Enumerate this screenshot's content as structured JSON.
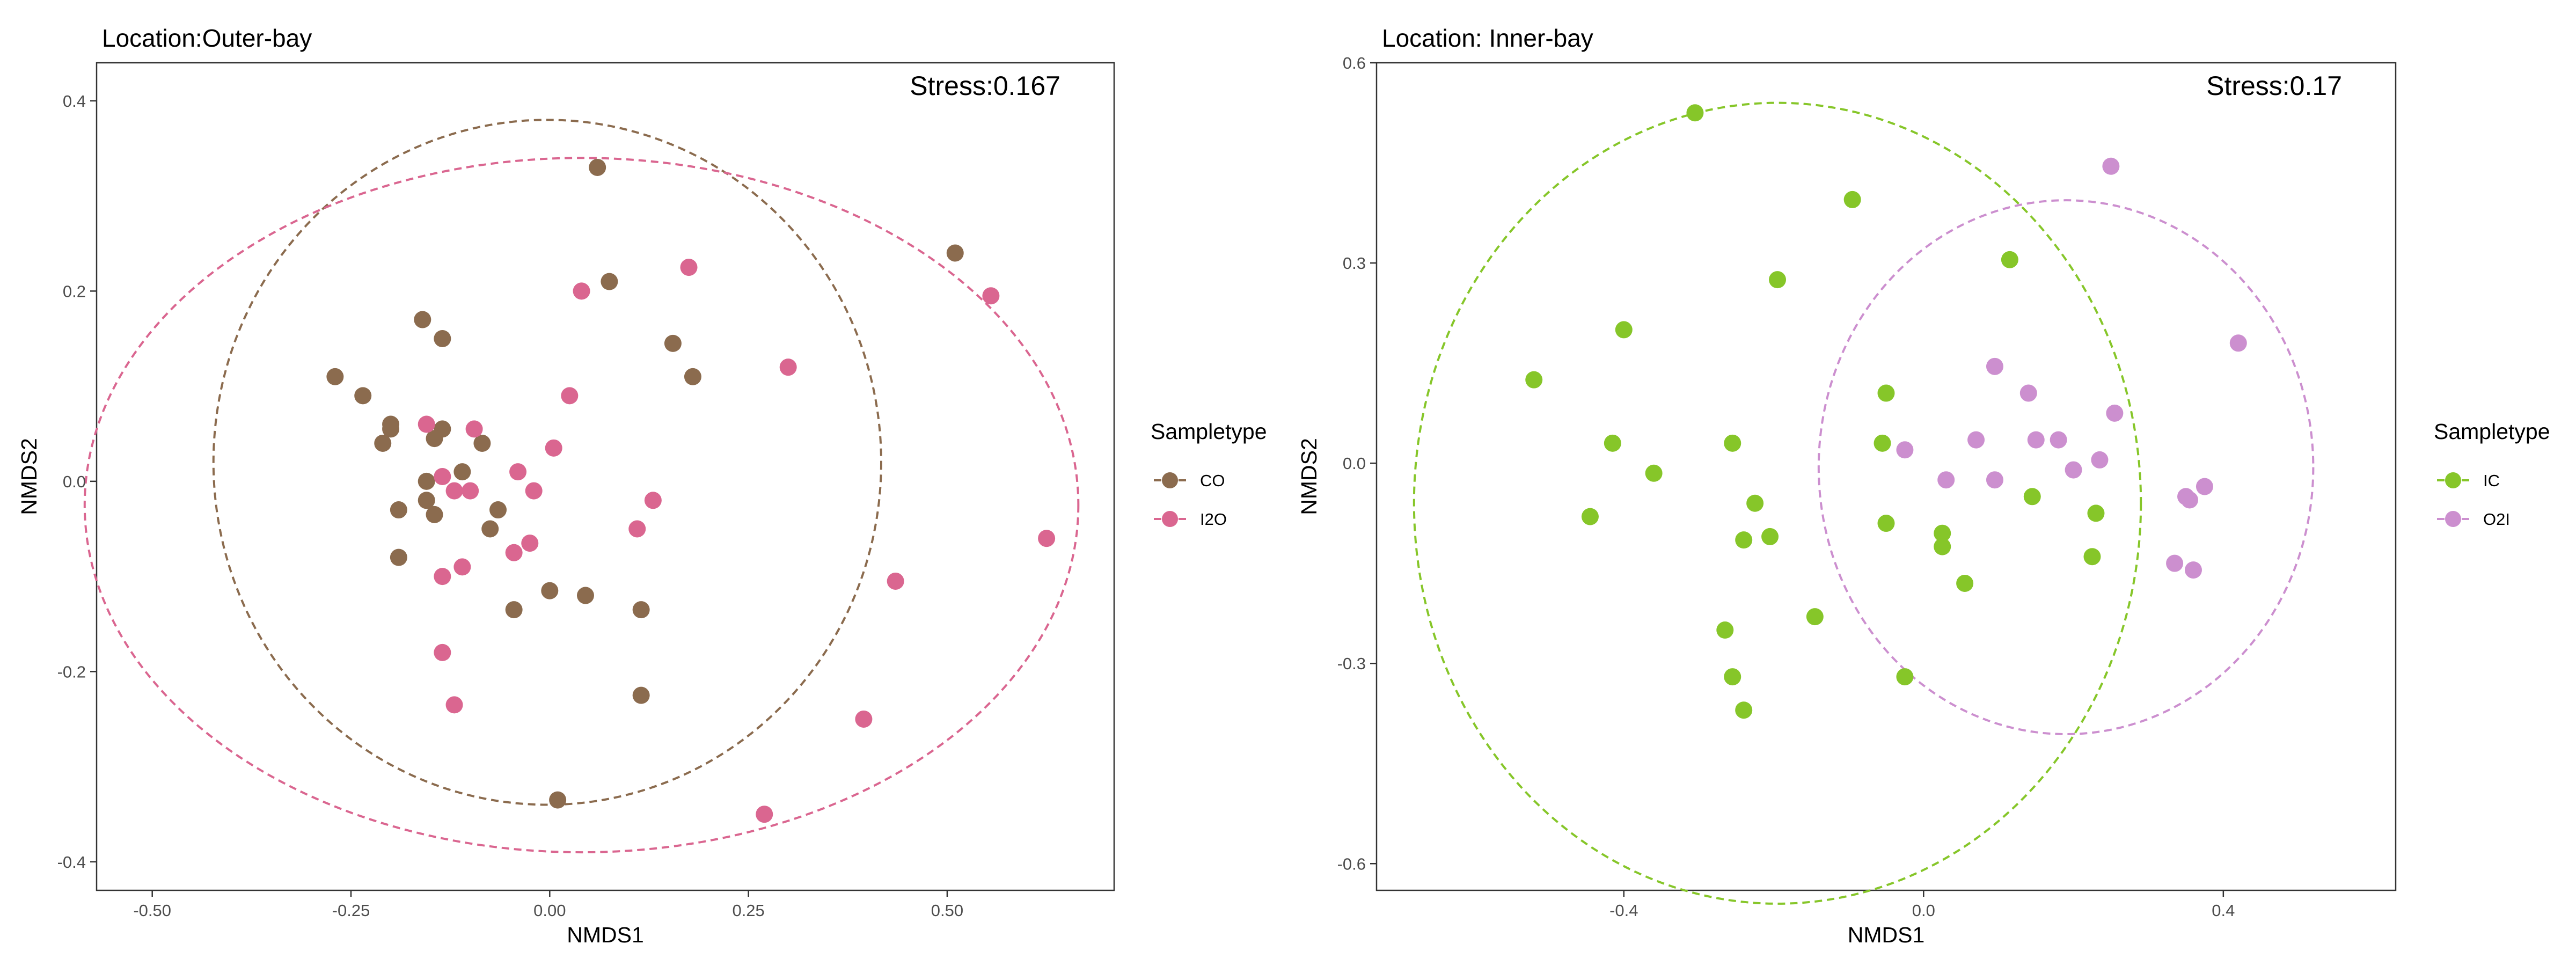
{
  "chart_data": [
    {
      "type": "scatter",
      "title": "Location:Outer-bay",
      "xlabel": "NMDS1",
      "ylabel": "NMDS2",
      "annotation": "Stress:0.167",
      "xlim": [
        -0.57,
        0.71
      ],
      "ylim": [
        -0.43,
        0.44
      ],
      "xticks": [
        -0.5,
        -0.25,
        0.0,
        0.25,
        0.5
      ],
      "xtick_labels": [
        "-0.50",
        "-0.25",
        "0.00",
        "0.25",
        "0.50"
      ],
      "yticks": [
        -0.4,
        -0.2,
        0.0,
        0.2,
        0.4
      ],
      "ytick_labels": [
        "-0.4",
        "-0.2",
        "0.0",
        "0.2",
        "0.4"
      ],
      "grid": false,
      "legend": {
        "title": "Sampletype",
        "position": "right"
      },
      "series": [
        {
          "name": "CO",
          "color": "#8B6B4E",
          "points": [
            [
              0.06,
              0.33
            ],
            [
              0.51,
              0.24
            ],
            [
              0.075,
              0.21
            ],
            [
              -0.16,
              0.17
            ],
            [
              -0.135,
              0.15
            ],
            [
              0.155,
              0.145
            ],
            [
              0.18,
              0.11
            ],
            [
              -0.27,
              0.11
            ],
            [
              -0.235,
              0.09
            ],
            [
              -0.2,
              0.06
            ],
            [
              -0.2,
              0.055
            ],
            [
              -0.135,
              0.055
            ],
            [
              -0.145,
              0.045
            ],
            [
              -0.21,
              0.04
            ],
            [
              -0.085,
              0.04
            ],
            [
              -0.11,
              0.01
            ],
            [
              -0.155,
              0.0
            ],
            [
              -0.155,
              -0.02
            ],
            [
              -0.19,
              -0.03
            ],
            [
              -0.145,
              -0.035
            ],
            [
              -0.065,
              -0.03
            ],
            [
              -0.075,
              -0.05
            ],
            [
              -0.19,
              -0.08
            ],
            [
              0.0,
              -0.115
            ],
            [
              0.045,
              -0.12
            ],
            [
              -0.045,
              -0.135
            ],
            [
              0.115,
              -0.135
            ],
            [
              0.115,
              -0.225
            ],
            [
              0.01,
              -0.335
            ]
          ]
        },
        {
          "name": "I2O",
          "color": "#DA6690",
          "points": [
            [
              0.175,
              0.225
            ],
            [
              0.04,
              0.2
            ],
            [
              0.555,
              0.195
            ],
            [
              0.3,
              0.12
            ],
            [
              0.025,
              0.09
            ],
            [
              -0.155,
              0.06
            ],
            [
              -0.095,
              0.055
            ],
            [
              0.005,
              0.035
            ],
            [
              -0.135,
              0.005
            ],
            [
              -0.04,
              0.01
            ],
            [
              -0.12,
              -0.01
            ],
            [
              -0.1,
              -0.01
            ],
            [
              -0.02,
              -0.01
            ],
            [
              0.13,
              -0.02
            ],
            [
              0.11,
              -0.05
            ],
            [
              -0.025,
              -0.065
            ],
            [
              -0.045,
              -0.075
            ],
            [
              -0.11,
              -0.09
            ],
            [
              -0.135,
              -0.1
            ],
            [
              0.625,
              -0.06
            ],
            [
              0.435,
              -0.105
            ],
            [
              -0.135,
              -0.18
            ],
            [
              -0.12,
              -0.235
            ],
            [
              0.395,
              -0.25
            ],
            [
              0.27,
              -0.35
            ]
          ]
        }
      ],
      "ellipses": [
        {
          "series": "CO",
          "center": [
            -0.003,
            0.02
          ],
          "radii": [
            0.42,
            0.36
          ]
        },
        {
          "series": "I2O",
          "center": [
            0.04,
            -0.025
          ],
          "radii": [
            0.625,
            0.365
          ]
        }
      ]
    },
    {
      "type": "scatter",
      "title": "Location: Inner-bay",
      "xlabel": "NMDS1",
      "ylabel": "NMDS2",
      "annotation": "Stress:0.17",
      "xlim": [
        -0.73,
        0.63
      ],
      "ylim": [
        -0.64,
        0.6
      ],
      "xticks": [
        -0.4,
        0.0,
        0.4
      ],
      "xtick_labels": [
        "-0.4",
        "0.0",
        "0.4"
      ],
      "yticks": [
        -0.6,
        -0.3,
        0.0,
        0.3,
        0.6
      ],
      "ytick_labels": [
        "-0.6",
        "-0.3",
        "0.0",
        "0.3",
        "0.6"
      ],
      "grid": false,
      "legend": {
        "title": "Sampletype",
        "position": "right"
      },
      "series": [
        {
          "name": "IC",
          "color": "#86C629",
          "points": [
            [
              -0.305,
              0.525
            ],
            [
              -0.095,
              0.395
            ],
            [
              0.115,
              0.305
            ],
            [
              -0.195,
              0.275
            ],
            [
              -0.4,
              0.2
            ],
            [
              -0.52,
              0.125
            ],
            [
              -0.05,
              0.105
            ],
            [
              -0.415,
              0.03
            ],
            [
              -0.255,
              0.03
            ],
            [
              -0.055,
              0.03
            ],
            [
              -0.36,
              -0.015
            ],
            [
              -0.225,
              -0.06
            ],
            [
              0.145,
              -0.05
            ],
            [
              0.23,
              -0.075
            ],
            [
              -0.445,
              -0.08
            ],
            [
              -0.05,
              -0.09
            ],
            [
              -0.205,
              -0.11
            ],
            [
              -0.24,
              -0.115
            ],
            [
              0.025,
              -0.105
            ],
            [
              0.025,
              -0.125
            ],
            [
              0.225,
              -0.14
            ],
            [
              0.055,
              -0.18
            ],
            [
              -0.145,
              -0.23
            ],
            [
              -0.265,
              -0.25
            ],
            [
              -0.025,
              -0.32
            ],
            [
              -0.255,
              -0.32
            ],
            [
              -0.24,
              -0.37
            ]
          ]
        },
        {
          "name": "O2I",
          "color": "#CC8FCF",
          "points": [
            [
              0.25,
              0.445
            ],
            [
              0.42,
              0.18
            ],
            [
              0.095,
              0.145
            ],
            [
              0.14,
              0.105
            ],
            [
              0.255,
              0.075
            ],
            [
              0.07,
              0.035
            ],
            [
              0.15,
              0.035
            ],
            [
              0.18,
              0.035
            ],
            [
              -0.025,
              0.02
            ],
            [
              0.235,
              0.005
            ],
            [
              0.2,
              -0.01
            ],
            [
              0.03,
              -0.025
            ],
            [
              0.095,
              -0.025
            ],
            [
              0.375,
              -0.035
            ],
            [
              0.35,
              -0.05
            ],
            [
              0.355,
              -0.055
            ],
            [
              0.335,
              -0.15
            ],
            [
              0.36,
              -0.16
            ]
          ]
        }
      ],
      "ellipses": [
        {
          "series": "IC",
          "center": [
            -0.195,
            -0.06
          ],
          "radii": [
            0.485,
            0.6
          ]
        },
        {
          "series": "O2I",
          "center": [
            0.19,
            -0.006
          ],
          "radii": [
            0.33,
            0.4
          ]
        }
      ]
    }
  ]
}
